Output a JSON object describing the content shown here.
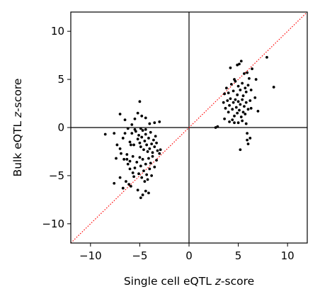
{
  "chart_data": {
    "type": "scatter",
    "title": "",
    "xlabel": {
      "pre": "Single cell eQTL ",
      "italic": "z",
      "post": "-score"
    },
    "ylabel": {
      "pre": "Bulk eQTL ",
      "italic": "z",
      "post": "-score"
    },
    "xlim": [
      -12,
      12
    ],
    "ylim": [
      -12,
      12
    ],
    "xticks": [
      -10,
      -5,
      0,
      5,
      10
    ],
    "yticks": [
      -10,
      -5,
      0,
      5,
      10
    ],
    "xtick_labels": [
      "−10",
      "−5",
      "0",
      "5",
      "10"
    ],
    "ytick_labels": [
      "−10",
      "−5",
      "0",
      "5",
      "10"
    ],
    "grid": false,
    "reference_lines": [
      {
        "type": "vertical",
        "x": 0,
        "color": "#000000"
      },
      {
        "type": "horizontal",
        "y": 0,
        "color": "#000000"
      },
      {
        "type": "diagonal",
        "slope": 1,
        "intercept": 0,
        "color": "#ff0000",
        "style": "dotted"
      }
    ],
    "point_color": "#000000",
    "points": [
      [
        -7.0,
        1.4
      ],
      [
        -6.5,
        0.8
      ],
      [
        -6.2,
        -0.1
      ],
      [
        -5.8,
        0.3
      ],
      [
        -5.5,
        0.9
      ],
      [
        -5.2,
        1.5
      ],
      [
        -5.0,
        2.7
      ],
      [
        -4.8,
        1.2
      ],
      [
        -4.4,
        1.0
      ],
      [
        -4.0,
        0.4
      ],
      [
        -3.5,
        0.5
      ],
      [
        -3.0,
        0.6
      ],
      [
        -8.5,
        -0.7
      ],
      [
        -7.6,
        -0.6
      ],
      [
        -7.3,
        -1.8
      ],
      [
        -7.0,
        -2.2
      ],
      [
        -6.7,
        -1.1
      ],
      [
        -6.5,
        -0.6
      ],
      [
        -6.3,
        -2.8
      ],
      [
        -6.0,
        -1.5
      ],
      [
        -5.8,
        -0.6
      ],
      [
        -5.6,
        -1.8
      ],
      [
        -5.4,
        -0.4
      ],
      [
        -5.2,
        -1.2
      ],
      [
        -5.1,
        -0.8
      ],
      [
        -5.0,
        -1.6
      ],
      [
        -4.9,
        -2.0
      ],
      [
        -4.8,
        -1.0
      ],
      [
        -4.7,
        -0.3
      ],
      [
        -4.6,
        -2.3
      ],
      [
        -4.5,
        -1.4
      ],
      [
        -4.4,
        -0.7
      ],
      [
        -4.3,
        -1.8
      ],
      [
        -4.2,
        -2.5
      ],
      [
        -4.1,
        -1.1
      ],
      [
        -4.0,
        -2.2
      ],
      [
        -3.9,
        -0.5
      ],
      [
        -3.8,
        -1.7
      ],
      [
        -3.7,
        -2.6
      ],
      [
        -3.6,
        -1.3
      ],
      [
        -3.5,
        -2.0
      ],
      [
        -3.4,
        -0.9
      ],
      [
        -3.3,
        -1.6
      ],
      [
        -3.2,
        -2.4
      ],
      [
        -3.0,
        -2.7
      ],
      [
        -2.9,
        -2.3
      ],
      [
        -5.5,
        -0.2
      ],
      [
        -4.9,
        -0.1
      ],
      [
        -4.4,
        -0.2
      ],
      [
        -6.9,
        -2.7
      ],
      [
        -6.6,
        -3.3
      ],
      [
        -6.2,
        -3.8
      ],
      [
        -6.0,
        -3.5
      ],
      [
        -5.7,
        -3.0
      ],
      [
        -5.5,
        -4.2
      ],
      [
        -5.3,
        -3.6
      ],
      [
        -5.1,
        -4.8
      ],
      [
        -5.0,
        -3.1
      ],
      [
        -4.9,
        -4.0
      ],
      [
        -4.8,
        -5.2
      ],
      [
        -4.7,
        -3.3
      ],
      [
        -4.6,
        -4.5
      ],
      [
        -4.5,
        -5.6
      ],
      [
        -4.4,
        -3.8
      ],
      [
        -4.3,
        -4.9
      ],
      [
        -4.2,
        -5.4
      ],
      [
        -4.1,
        -3.2
      ],
      [
        -4.0,
        -4.3
      ],
      [
        -3.9,
        -3.7
      ],
      [
        -3.7,
        -3.0
      ],
      [
        -3.5,
        -4.1
      ],
      [
        -3.3,
        -3.4
      ],
      [
        -7.6,
        -5.8
      ],
      [
        -7.0,
        -5.2
      ],
      [
        -6.7,
        -6.3
      ],
      [
        -6.4,
        -5.6
      ],
      [
        -6.1,
        -5.9
      ],
      [
        -5.9,
        -6.1
      ],
      [
        -5.6,
        -5.1
      ],
      [
        -5.2,
        -6.5
      ],
      [
        -4.9,
        -7.3
      ],
      [
        -4.7,
        -7.0
      ],
      [
        -4.4,
        -6.6
      ],
      [
        -4.1,
        -6.8
      ],
      [
        -3.8,
        -5.0
      ],
      [
        -6.0,
        -4.3
      ],
      [
        -5.7,
        -4.7
      ],
      [
        -6.3,
        -3.3
      ],
      [
        -7.4,
        -3.2
      ],
      [
        -5.9,
        -1.8
      ],
      [
        4.2,
        6.2
      ],
      [
        4.6,
        5.0
      ],
      [
        4.9,
        6.5
      ],
      [
        5.1,
        6.6
      ],
      [
        5.3,
        6.9
      ],
      [
        5.6,
        5.6
      ],
      [
        5.9,
        5.7
      ],
      [
        6.1,
        5.1
      ],
      [
        6.4,
        6.1
      ],
      [
        6.8,
        5.0
      ],
      [
        7.9,
        7.3
      ],
      [
        8.6,
        4.2
      ],
      [
        3.6,
        3.5
      ],
      [
        3.8,
        4.1
      ],
      [
        4.0,
        3.6
      ],
      [
        4.3,
        4.5
      ],
      [
        4.5,
        3.8
      ],
      [
        4.7,
        4.8
      ],
      [
        4.9,
        3.4
      ],
      [
        5.0,
        4.3
      ],
      [
        5.2,
        3.9
      ],
      [
        5.4,
        4.6
      ],
      [
        5.5,
        3.3
      ],
      [
        5.7,
        4.1
      ],
      [
        5.8,
        3.7
      ],
      [
        6.0,
        4.4
      ],
      [
        6.3,
        3.9
      ],
      [
        6.7,
        3.1
      ],
      [
        3.5,
        2.6
      ],
      [
        3.7,
        2.0
      ],
      [
        3.9,
        2.8
      ],
      [
        4.0,
        1.6
      ],
      [
        4.1,
        2.3
      ],
      [
        4.2,
        3.0
      ],
      [
        4.4,
        1.9
      ],
      [
        4.5,
        2.6
      ],
      [
        4.6,
        1.2
      ],
      [
        4.7,
        2.9
      ],
      [
        4.8,
        2.1
      ],
      [
        4.9,
        1.5
      ],
      [
        5.0,
        2.7
      ],
      [
        5.1,
        1.8
      ],
      [
        5.2,
        2.4
      ],
      [
        5.3,
        1.1
      ],
      [
        5.4,
        2.9
      ],
      [
        5.5,
        1.6
      ],
      [
        5.6,
        2.2
      ],
      [
        5.7,
        1.4
      ],
      [
        5.8,
        2.6
      ],
      [
        6.0,
        1.9
      ],
      [
        6.2,
        2.8
      ],
      [
        6.3,
        2.0
      ],
      [
        7.0,
        1.7
      ],
      [
        3.6,
        0.9
      ],
      [
        4.1,
        0.6
      ],
      [
        4.4,
        0.8
      ],
      [
        5.0,
        0.5
      ],
      [
        5.4,
        0.7
      ],
      [
        5.8,
        0.4
      ],
      [
        2.7,
        0.0
      ],
      [
        2.9,
        0.1
      ],
      [
        4.6,
        0.5
      ],
      [
        5.9,
        -0.6
      ],
      [
        6.2,
        -1.1
      ],
      [
        6.0,
        -1.7
      ],
      [
        5.2,
        -2.3
      ],
      [
        5.9,
        -1.3
      ]
    ]
  }
}
